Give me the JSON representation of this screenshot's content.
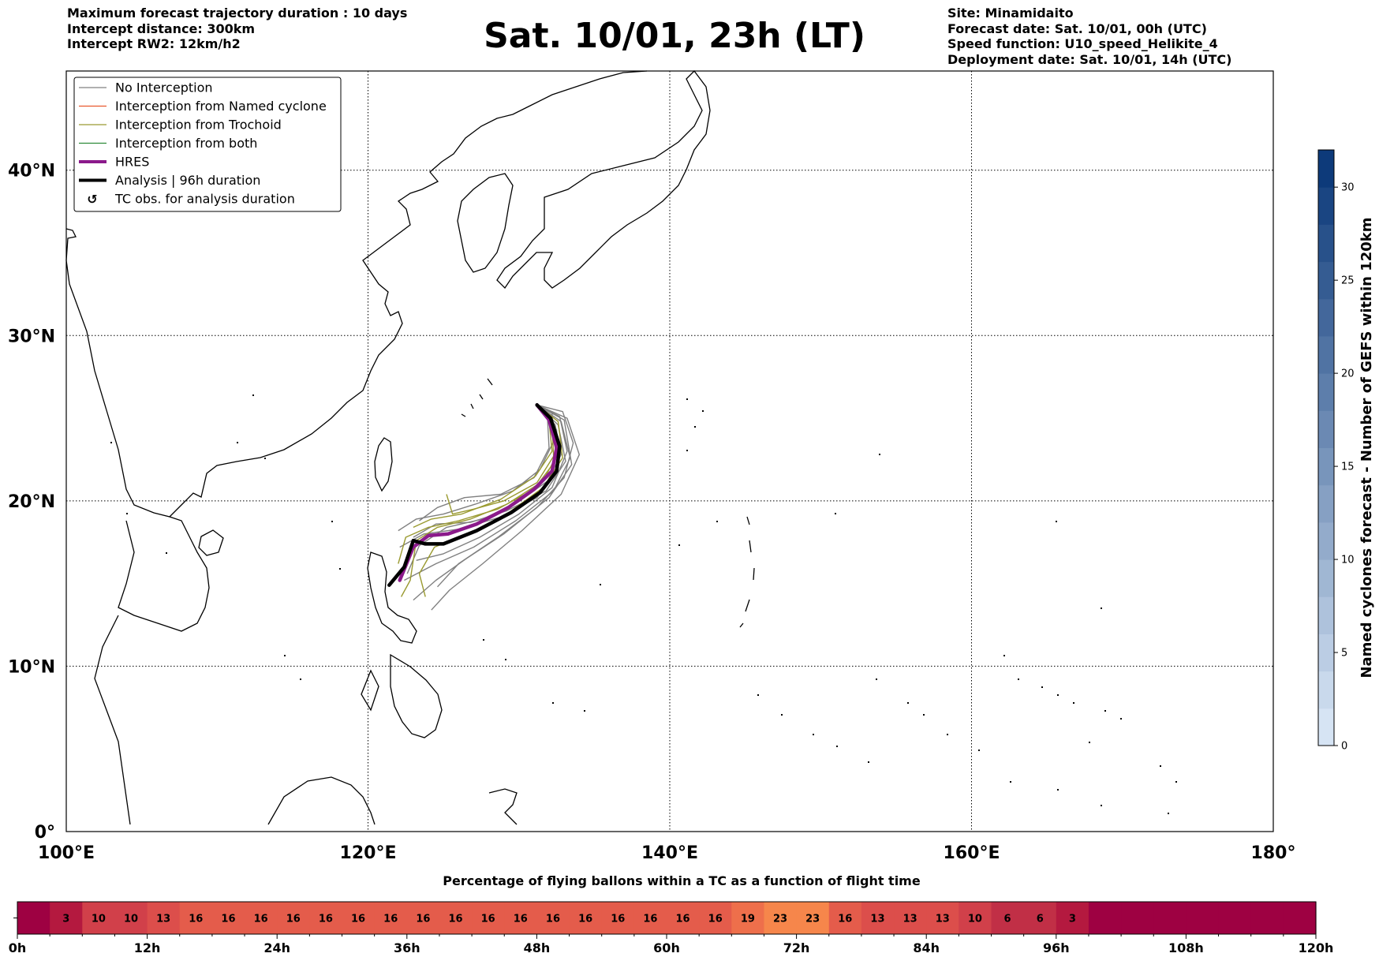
{
  "header_left": [
    "Maximum forecast trajectory duration : 10 days",
    "Intercept distance: 300km",
    "Intercept RW2: 12km/h2"
  ],
  "title": "Sat. 10/01, 23h (LT)",
  "header_right": [
    "Site: Minamidaito",
    "Forecast date: Sat. 10/01, 00h (UTC)",
    "Speed function: U10_speed_Helikite_4",
    "Deployment date: Sat. 10/01, 14h (UTC)"
  ],
  "legend": [
    {
      "label": "No Interception",
      "color": "#808080",
      "style": "thin"
    },
    {
      "label": "Interception from Named cyclone",
      "color": "#e8592e",
      "style": "thin"
    },
    {
      "label": "Interception from Trochoid",
      "color": "#9a9a30",
      "style": "thin"
    },
    {
      "label": "Interception from both",
      "color": "#2e8b3a",
      "style": "thin"
    },
    {
      "label": "HRES",
      "color": "#8b1a8b",
      "style": "thick"
    },
    {
      "label": "Analysis | 96h duration",
      "color": "#000000",
      "style": "thick"
    },
    {
      "label": "TC obs. for analysis duration",
      "color": "#000000",
      "style": "marker"
    }
  ],
  "map_axes": {
    "lon_ticks": [
      "100°E",
      "120°E",
      "140°E",
      "160°E",
      "180°"
    ],
    "lat_ticks": [
      "0°",
      "10°N",
      "20°N",
      "30°N",
      "40°N"
    ]
  },
  "colorbar": {
    "label": "Named cyclones forecast - Number of GEFS within 120km",
    "ticks": [
      "0",
      "5",
      "10",
      "15",
      "20",
      "25",
      "30"
    ],
    "min": 0,
    "max": 32,
    "color_low": "#d6e4f4",
    "color_high": "#0d3a7a"
  },
  "chart_data": [
    {
      "type": "map-trajectories",
      "lon_range": [
        100,
        180
      ],
      "lat_range": [
        0,
        46
      ],
      "site": {
        "name": "Minamidaito",
        "lon": 131.2,
        "lat": 25.8
      },
      "hres": [
        [
          131.2,
          25.8
        ],
        [
          132.0,
          24.9
        ],
        [
          132.5,
          23.2
        ],
        [
          132.2,
          21.8
        ],
        [
          131.0,
          20.7
        ],
        [
          129.3,
          19.6
        ],
        [
          127.2,
          18.6
        ],
        [
          125.3,
          18.0
        ],
        [
          124.0,
          17.9
        ],
        [
          123.0,
          17.2
        ],
        [
          122.1,
          15.2
        ]
      ],
      "analysis": [
        [
          131.2,
          25.8
        ],
        [
          132.1,
          25.0
        ],
        [
          132.7,
          23.3
        ],
        [
          132.5,
          21.8
        ],
        [
          131.4,
          20.5
        ],
        [
          129.5,
          19.3
        ],
        [
          127.2,
          18.2
        ],
        [
          125.0,
          17.4
        ],
        [
          123.8,
          17.4
        ],
        [
          123.0,
          17.6
        ],
        [
          122.4,
          16.0
        ],
        [
          121.4,
          14.9
        ]
      ],
      "trajectories": [
        {
          "kind": "none",
          "points": [
            [
              131.2,
              25.8
            ],
            [
              132.8,
              24.8
            ],
            [
              133.4,
              22.6
            ],
            [
              132.3,
              20.6
            ],
            [
              129.8,
              18.8
            ],
            [
              127.0,
              17.2
            ],
            [
              124.5,
              16.2
            ],
            [
              122.4,
              15.2
            ]
          ]
        },
        {
          "kind": "none",
          "points": [
            [
              131.2,
              25.8
            ],
            [
              133.0,
              24.9
            ],
            [
              133.5,
              22.2
            ],
            [
              132.0,
              20.2
            ],
            [
              129.0,
              18.0
            ],
            [
              126.5,
              16.5
            ],
            [
              124.5,
              15.2
            ],
            [
              123.0,
              14.0
            ]
          ]
        },
        {
          "kind": "none",
          "points": [
            [
              131.2,
              25.8
            ],
            [
              132.6,
              24.6
            ],
            [
              133.1,
              22.4
            ],
            [
              131.8,
              20.6
            ],
            [
              129.2,
              19.4
            ],
            [
              126.8,
              18.7
            ],
            [
              124.5,
              18.6
            ],
            [
              123.0,
              17.8
            ]
          ]
        },
        {
          "kind": "none",
          "points": [
            [
              131.2,
              25.8
            ],
            [
              132.4,
              24.6
            ],
            [
              132.8,
              22.8
            ],
            [
              131.9,
              21.2
            ],
            [
              129.9,
              19.9
            ],
            [
              127.6,
              18.9
            ],
            [
              125.2,
              18.4
            ],
            [
              123.4,
              17.3
            ],
            [
              122.6,
              15.6
            ]
          ]
        },
        {
          "kind": "none",
          "points": [
            [
              131.2,
              25.8
            ],
            [
              133.2,
              25.0
            ],
            [
              134.0,
              22.8
            ],
            [
              132.8,
              20.4
            ],
            [
              130.2,
              18.2
            ],
            [
              127.6,
              16.2
            ],
            [
              125.4,
              14.6
            ],
            [
              124.2,
              13.4
            ]
          ]
        },
        {
          "kind": "none",
          "points": [
            [
              131.2,
              25.8
            ],
            [
              132.2,
              25.3
            ],
            [
              132.3,
              23.6
            ],
            [
              131.4,
              21.9
            ],
            [
              129.6,
              20.6
            ],
            [
              127.1,
              19.8
            ],
            [
              125.0,
              19.2
            ],
            [
              123.2,
              18.9
            ],
            [
              122.0,
              18.2
            ]
          ]
        },
        {
          "kind": "none",
          "points": [
            [
              131.2,
              25.8
            ],
            [
              131.9,
              24.9
            ],
            [
              132.0,
              23.2
            ],
            [
              131.0,
              21.4
            ],
            [
              128.8,
              20.4
            ],
            [
              126.4,
              20.2
            ],
            [
              124.6,
              19.6
            ],
            [
              123.4,
              18.8
            ]
          ]
        },
        {
          "kind": "none",
          "points": [
            [
              131.2,
              25.8
            ],
            [
              132.9,
              25.4
            ],
            [
              133.6,
              23.5
            ],
            [
              133.0,
              21.4
            ],
            [
              131.2,
              19.6
            ],
            [
              128.6,
              17.8
            ],
            [
              126.0,
              16.2
            ],
            [
              124.6,
              14.8
            ]
          ]
        },
        {
          "kind": "none",
          "points": [
            [
              131.2,
              25.8
            ],
            [
              132.5,
              24.3
            ],
            [
              132.6,
              22.0
            ],
            [
              131.2,
              20.2
            ],
            [
              128.7,
              19.0
            ],
            [
              126.1,
              18.3
            ],
            [
              123.7,
              18.0
            ],
            [
              122.1,
              17.2
            ]
          ]
        },
        {
          "kind": "none",
          "points": [
            [
              131.2,
              25.8
            ],
            [
              132.7,
              25.1
            ],
            [
              133.2,
              23.0
            ],
            [
              132.2,
              20.8
            ],
            [
              130.0,
              19.2
            ],
            [
              127.4,
              17.8
            ],
            [
              125.0,
              16.8
            ],
            [
              123.2,
              16.4
            ]
          ]
        },
        {
          "kind": "trochoid",
          "points": [
            [
              131.2,
              25.8
            ],
            [
              132.3,
              24.7
            ],
            [
              132.6,
              22.9
            ],
            [
              131.6,
              21.2
            ],
            [
              129.2,
              19.8
            ],
            [
              126.8,
              18.9
            ],
            [
              124.6,
              18.4
            ],
            [
              123.2,
              17.6
            ],
            [
              122.8,
              15.2
            ],
            [
              122.2,
              14.2
            ]
          ]
        },
        {
          "kind": "trochoid",
          "points": [
            [
              131.2,
              25.8
            ],
            [
              132.2,
              24.6
            ],
            [
              132.3,
              22.7
            ],
            [
              131.2,
              21.1
            ],
            [
              129.0,
              20.0
            ],
            [
              127.0,
              19.5
            ],
            [
              125.6,
              19.2
            ],
            [
              125.2,
              20.4
            ]
          ]
        },
        {
          "kind": "trochoid",
          "points": [
            [
              131.2,
              25.8
            ],
            [
              132.6,
              24.8
            ],
            [
              132.9,
              22.6
            ],
            [
              131.6,
              20.8
            ],
            [
              129.2,
              19.2
            ],
            [
              126.6,
              18.0
            ],
            [
              124.4,
              17.2
            ],
            [
              123.4,
              15.6
            ],
            [
              123.8,
              14.2
            ]
          ]
        },
        {
          "kind": "trochoid",
          "points": [
            [
              131.2,
              25.8
            ],
            [
              132.4,
              24.4
            ],
            [
              132.4,
              22.4
            ],
            [
              131.0,
              20.7
            ],
            [
              128.6,
              19.5
            ],
            [
              126.0,
              18.8
            ],
            [
              124.0,
              18.4
            ],
            [
              122.5,
              17.8
            ],
            [
              122.0,
              16.2
            ]
          ]
        },
        {
          "kind": "trochoid",
          "points": [
            [
              131.2,
              25.8
            ],
            [
              132.0,
              24.8
            ],
            [
              132.2,
              23.0
            ],
            [
              131.1,
              21.5
            ],
            [
              128.8,
              20.1
            ],
            [
              126.2,
              19.2
            ],
            [
              124.2,
              18.9
            ],
            [
              123.0,
              18.4
            ]
          ]
        }
      ],
      "tc_obs": []
    },
    {
      "type": "heatmap",
      "title": "Percentage of flying ballons within a TC as a function of flight time",
      "hour_step": 3,
      "cells": [
        0,
        3,
        10,
        10,
        13,
        16,
        16,
        16,
        16,
        16,
        16,
        16,
        16,
        16,
        16,
        16,
        16,
        16,
        16,
        16,
        16,
        16,
        19,
        23,
        23,
        16,
        13,
        13,
        13,
        10,
        6,
        6,
        3,
        0,
        0,
        0,
        0,
        0,
        0,
        0
      ],
      "x_tick_labels": [
        "0h",
        "12h",
        "24h",
        "36h",
        "48h",
        "60h",
        "72h",
        "84h",
        "96h",
        "108h",
        "120h"
      ],
      "cell_colors": {
        "0": "#9e0142",
        "3": "#b4193f",
        "6": "#c12f46",
        "10": "#d1404a",
        "13": "#dc4e4b",
        "16": "#e45c4b",
        "19": "#ee6f4b",
        "23": "#f6864b"
      }
    }
  ]
}
